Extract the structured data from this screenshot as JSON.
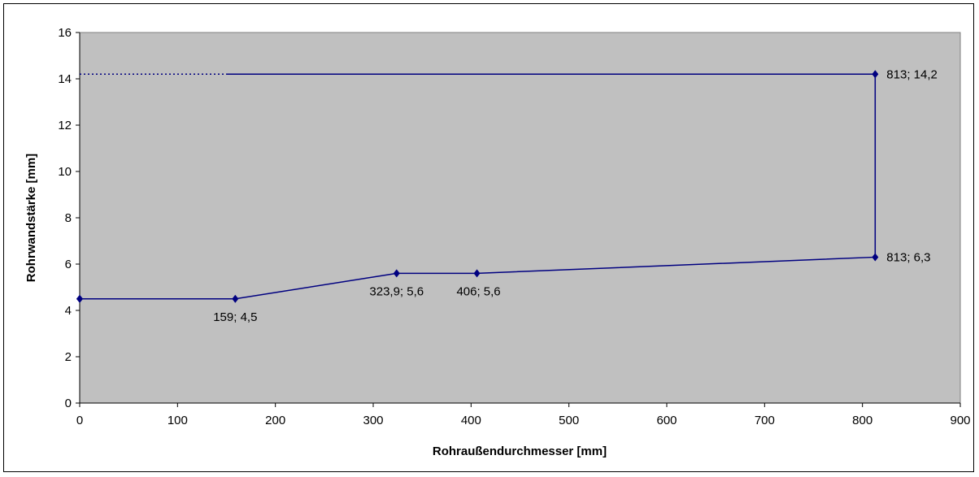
{
  "chart_data": {
    "type": "line",
    "title": "",
    "xlabel": "Rohraußendurchmesser [mm]",
    "ylabel": "Rohrwandstärke [mm]",
    "xlim": [
      0,
      900
    ],
    "ylim": [
      0,
      16
    ],
    "x_ticks": [
      "0",
      "100",
      "200",
      "300",
      "400",
      "500",
      "600",
      "700",
      "800",
      "900"
    ],
    "y_ticks": [
      "0",
      "2",
      "4",
      "6",
      "8",
      "10",
      "12",
      "14",
      "16"
    ],
    "grid": false,
    "legend": "none",
    "plot_background": "#C0C0C0",
    "series_color": "#000080",
    "series": [
      {
        "x": [
          0,
          159,
          323.9,
          406,
          813,
          813
        ],
        "y": [
          4.5,
          4.5,
          5.6,
          5.6,
          6.3,
          14.2
        ]
      }
    ],
    "dotted_segments": [
      {
        "x": [
          0,
          90
        ],
        "y": [
          4.5,
          4.5
        ]
      },
      {
        "x": [
          0,
          150
        ],
        "y": [
          14.2,
          14.2
        ]
      }
    ],
    "extension_lines": [
      {
        "x": [
          90,
          159
        ],
        "y": [
          4.5,
          4.5
        ]
      },
      {
        "x": [
          150,
          813
        ],
        "y": [
          14.2,
          14.2
        ]
      }
    ],
    "extra_points": [
      {
        "x": 0,
        "y": 4.5
      }
    ],
    "data_labels": [
      {
        "x": 159,
        "y": 4.5,
        "text": "159; 4,5",
        "pos": "below"
      },
      {
        "x": 323.9,
        "y": 5.6,
        "text": "323,9; 5,6",
        "pos": "below"
      },
      {
        "x": 406,
        "y": 5.6,
        "text": "406; 5,6",
        "pos": "right-below"
      },
      {
        "x": 813,
        "y": 6.3,
        "text": "813; 6,3",
        "pos": "right"
      },
      {
        "x": 813,
        "y": 14.2,
        "text": "813; 14,2",
        "pos": "right"
      }
    ]
  }
}
